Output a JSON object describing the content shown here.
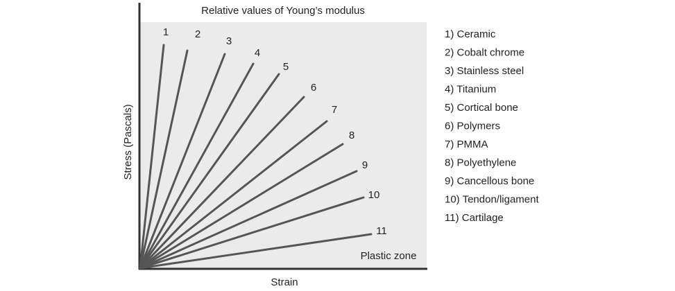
{
  "title": "Relative values of Young’s modulus",
  "x_axis_label": "Strain",
  "y_axis_label": "Stress (Pascals)",
  "zone_label": "Plastic zone",
  "lines": [
    "1",
    "2",
    "3",
    "4",
    "5",
    "6",
    "7",
    "8",
    "9",
    "10",
    "11"
  ],
  "legend": [
    "1) Ceramic",
    "2) Cobalt chrome",
    "3) Stainless steel",
    "4) Titanium",
    "5) Cortical bone",
    "6) Polymers",
    "7) PMMA",
    "8) Polyethylene",
    "9) Cancellous bone",
    "10) Tendon/ligament",
    "11) Cartilage"
  ]
}
